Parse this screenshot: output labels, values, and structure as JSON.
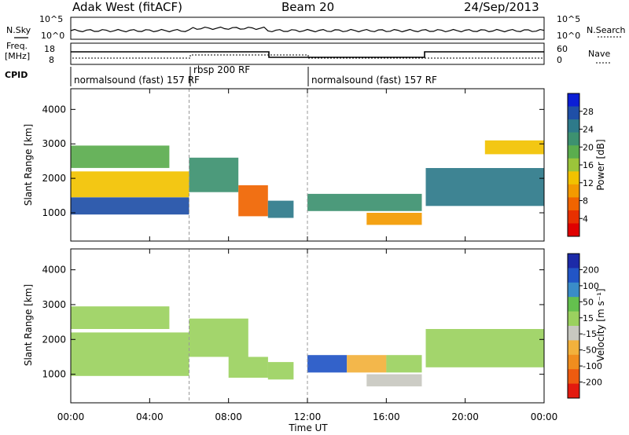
{
  "header": {
    "station": "Adak West (fitACF)",
    "beam": "Beam 20",
    "date": "24/Sep/2013"
  },
  "top_panels": {
    "nsky_label": "N.Sky",
    "nsearch_label": "N.Search",
    "freq_label_1": "Freq.",
    "freq_label_2": "[MHz]",
    "nave_label": "Nave",
    "cpid_label": "CPID",
    "nsky_ticks": [
      "10^5",
      "10^0"
    ],
    "nsearch_ticks": [
      "10^5",
      "10^0"
    ],
    "freq_ticks": [
      "18",
      "8"
    ],
    "nave_ticks": [
      "60",
      "0"
    ]
  },
  "cpid_segments": [
    {
      "label": "normalsound (fast) 157 RF",
      "start_h": 0.0,
      "end_h": 6.0
    },
    {
      "label": "rbsp 200 RF",
      "start_h": 6.0,
      "end_h": 12.0
    },
    {
      "label": "normalsound (fast) 157 RF",
      "start_h": 12.0,
      "end_h": 24.0
    }
  ],
  "x_axis": {
    "label": "Time UT",
    "ticks": [
      "00:00",
      "04:00",
      "08:00",
      "12:00",
      "16:00",
      "20:00",
      "00:00"
    ]
  },
  "colorbars": {
    "power": {
      "label": "Power [dB]",
      "ticks": [
        "28",
        "24",
        "20",
        "16",
        "12",
        "8",
        "4"
      ],
      "colors": [
        "#0b1ed6",
        "#1f4fa7",
        "#2e7a8a",
        "#3d9170",
        "#5bad4e",
        "#9bc53a",
        "#f2c200",
        "#f39a00",
        "#f06400",
        "#e83000",
        "#e00000"
      ]
    },
    "velocity": {
      "label": "Velocity [m s⁻¹]",
      "ticks": [
        "200",
        "100",
        "50",
        "15",
        "-15",
        "-50",
        "-100",
        "-200"
      ],
      "colors": [
        "#1c2aa8",
        "#2255c6",
        "#3a8cc8",
        "#64c04e",
        "#9bd15f",
        "#c8c8c0",
        "#f2b13c",
        "#f08d1e",
        "#ee5b10",
        "#e31a0f"
      ]
    }
  },
  "chart_data": [
    {
      "type": "heatmap",
      "title": "Power",
      "xlabel": "Time UT",
      "ylabel": "Slant Range [km]",
      "xlim": [
        0,
        24
      ],
      "ylim": [
        180,
        4600
      ],
      "y_ticks": [
        1000,
        2000,
        3000,
        4000
      ],
      "colorbar_range": [
        0,
        32
      ],
      "bands": [
        {
          "t_start": 0.0,
          "t_end": 6.0,
          "r_low": 950,
          "r_high": 1450,
          "value": 27
        },
        {
          "t_start": 0.0,
          "t_end": 6.0,
          "r_low": 1450,
          "r_high": 2200,
          "value": 14
        },
        {
          "t_start": 0.0,
          "t_end": 5.0,
          "r_low": 2300,
          "r_high": 2950,
          "value": 18
        },
        {
          "t_start": 6.0,
          "t_end": 8.5,
          "r_low": 1600,
          "r_high": 2600,
          "value": 22
        },
        {
          "t_start": 8.5,
          "t_end": 10.0,
          "r_low": 900,
          "r_high": 1800,
          "value": 8
        },
        {
          "t_start": 10.0,
          "t_end": 11.3,
          "r_low": 850,
          "r_high": 1350,
          "value": 26
        },
        {
          "t_start": 12.0,
          "t_end": 17.8,
          "r_low": 1050,
          "r_high": 1550,
          "value": 22
        },
        {
          "t_start": 15.0,
          "t_end": 17.8,
          "r_low": 650,
          "r_high": 1000,
          "value": 10
        },
        {
          "t_start": 18.0,
          "t_end": 24.0,
          "r_low": 1200,
          "r_high": 2300,
          "value": 24
        },
        {
          "t_start": 21.0,
          "t_end": 24.0,
          "r_low": 2700,
          "r_high": 3100,
          "value": 12
        }
      ]
    },
    {
      "type": "heatmap",
      "title": "Velocity",
      "xlabel": "Time UT",
      "ylabel": "Slant Range [km]",
      "xlim": [
        0,
        24
      ],
      "ylim": [
        180,
        4600
      ],
      "y_ticks": [
        1000,
        2000,
        3000,
        4000
      ],
      "colorbar_range": [
        -250,
        250
      ],
      "bands": [
        {
          "t_start": 0.0,
          "t_end": 6.0,
          "r_low": 950,
          "r_high": 2200,
          "value": 0
        },
        {
          "t_start": 0.0,
          "t_end": 5.0,
          "r_low": 2300,
          "r_high": 2950,
          "value": 0
        },
        {
          "t_start": 6.0,
          "t_end": 9.0,
          "r_low": 1500,
          "r_high": 2600,
          "value": 0
        },
        {
          "t_start": 8.0,
          "t_end": 10.0,
          "r_low": 900,
          "r_high": 1500,
          "value": 0
        },
        {
          "t_start": 10.0,
          "t_end": 11.3,
          "r_low": 850,
          "r_high": 1350,
          "value": 30
        },
        {
          "t_start": 12.0,
          "t_end": 14.0,
          "r_low": 1050,
          "r_high": 1550,
          "value": 150
        },
        {
          "t_start": 14.0,
          "t_end": 16.0,
          "r_low": 1050,
          "r_high": 1550,
          "value": -60
        },
        {
          "t_start": 16.0,
          "t_end": 17.8,
          "r_low": 1050,
          "r_high": 1550,
          "value": 20
        },
        {
          "t_start": 15.0,
          "t_end": 17.8,
          "r_low": 650,
          "r_high": 1000,
          "value": -10
        },
        {
          "t_start": 18.0,
          "t_end": 24.0,
          "r_low": 1200,
          "r_high": 2300,
          "value": 0
        }
      ]
    }
  ]
}
